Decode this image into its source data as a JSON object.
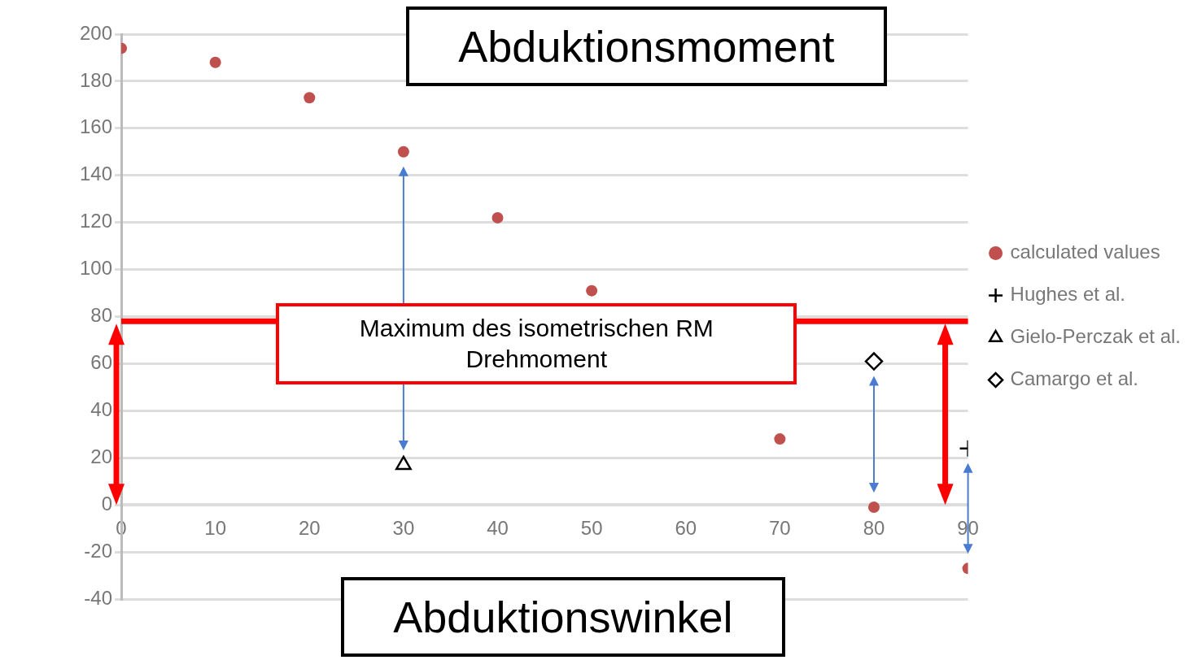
{
  "chart_data": {
    "type": "scatter",
    "title": "Abduktionsmoment",
    "xlabel": "Abduktionswinkel",
    "x": [
      0,
      10,
      20,
      30,
      40,
      50,
      60,
      70,
      80,
      90
    ],
    "series": [
      {
        "name": "calculated values",
        "color": "#c0504d",
        "marker": "circle",
        "values": [
          194,
          188,
          173,
          150,
          122,
          91,
          null,
          28,
          -1,
          -27
        ]
      },
      {
        "name": "Hughes et al.",
        "color": "#000000",
        "marker": "cross",
        "x": [
          90
        ],
        "values": [
          24
        ]
      },
      {
        "name": "Gielo-Perczak et al.",
        "color": "#000000",
        "marker": "triangle",
        "x": [
          30
        ],
        "values": [
          17
        ]
      },
      {
        "name": "Camargo et al.",
        "color": "#000000",
        "marker": "diamond",
        "x": [
          80
        ],
        "values": [
          61
        ]
      }
    ],
    "xlim": [
      0,
      90
    ],
    "xticks": [
      0,
      10,
      20,
      30,
      40,
      50,
      60,
      70,
      80,
      90
    ],
    "ylim": [
      -40,
      200
    ],
    "yticks": [
      -40,
      -20,
      0,
      20,
      40,
      60,
      80,
      100,
      120,
      140,
      160,
      180,
      200
    ],
    "ref_lines": [
      {
        "axis": "y",
        "value": 78,
        "label": "Maximum des isometrischen RM Drehmoment",
        "color": "#ff0000"
      }
    ],
    "grid": "y",
    "legend": "right"
  }
}
